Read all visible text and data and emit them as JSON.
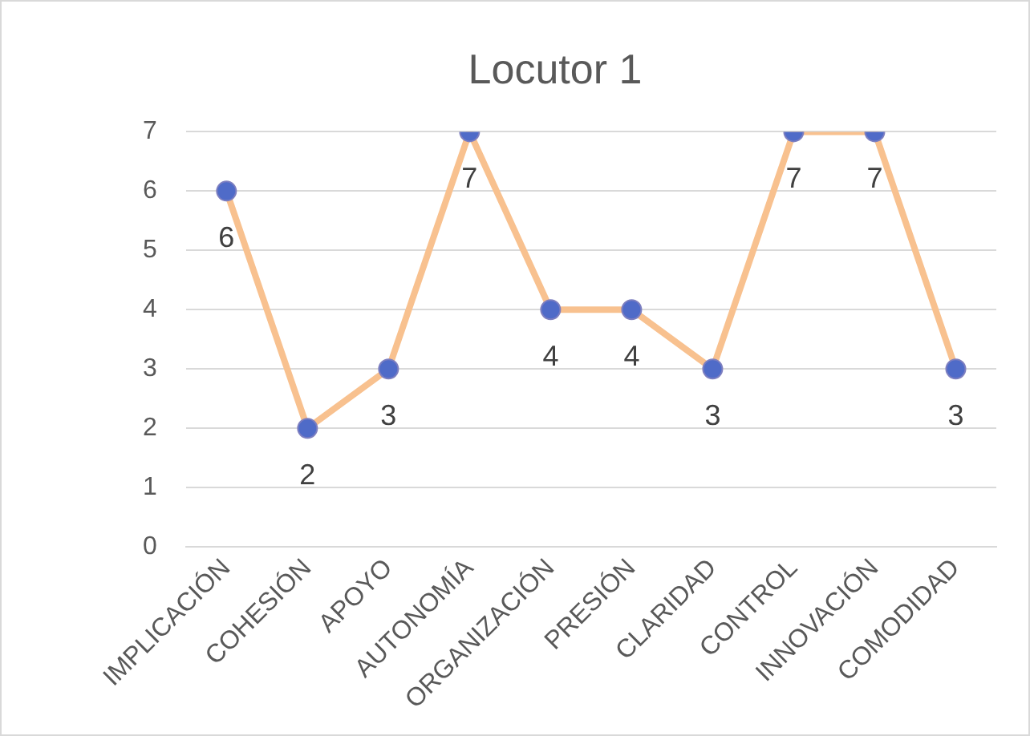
{
  "chart_data": {
    "type": "line",
    "title": "Locutor 1",
    "categories": [
      "IMPLICACIÓN",
      "COHESIÓN",
      "APOYO",
      "AUTONOMÍA",
      "ORGANIZACIÓN",
      "PRESIÓN",
      "CLARIDAD",
      "CONTROL",
      "INNOVACIÓN",
      "COMODIDAD"
    ],
    "series": [
      {
        "color": "#f8c18f",
        "values": [
          6,
          2,
          3,
          7,
          4,
          4,
          3,
          7,
          7,
          3
        ]
      }
    ],
    "ylim": [
      0,
      7
    ],
    "yticks": [
      0,
      1,
      2,
      3,
      4,
      5,
      6,
      7
    ],
    "grid": "y",
    "legend": false,
    "marker": "circle",
    "data_labels": true
  }
}
